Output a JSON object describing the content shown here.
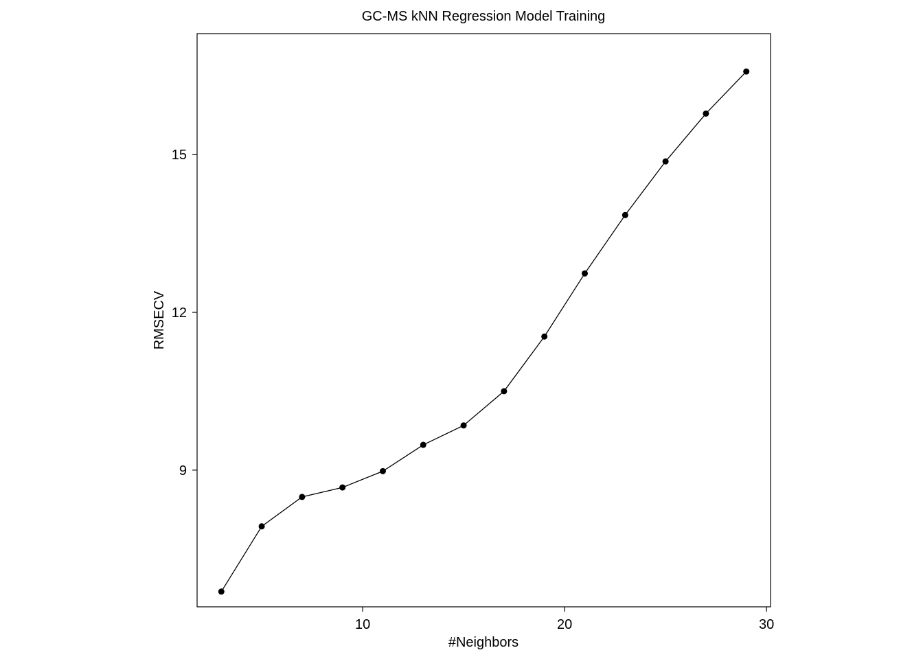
{
  "chart_data": {
    "type": "line",
    "title": "GC-MS kNN Regression Model Training",
    "xlabel": "#Neighbors",
    "ylabel": "RMSECV",
    "xlim": [
      1.8,
      30.2
    ],
    "ylim": [
      6.4,
      17.3
    ],
    "xticks": [
      10,
      20,
      30
    ],
    "yticks": [
      9,
      12,
      15
    ],
    "grid": false,
    "legend": "none",
    "series": [
      {
        "x": [
          3,
          5,
          7,
          9,
          11,
          13,
          15,
          17,
          19,
          21,
          23,
          25,
          27,
          29
        ],
        "y": [
          6.69,
          7.93,
          8.49,
          8.67,
          8.98,
          9.48,
          9.85,
          10.5,
          11.54,
          12.74,
          13.85,
          14.87,
          15.78,
          16.58
        ]
      }
    ]
  }
}
